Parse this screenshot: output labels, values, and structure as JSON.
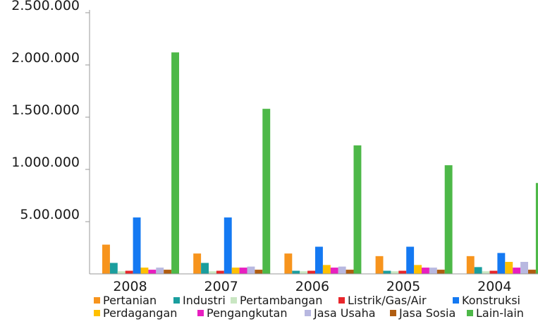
{
  "chart_data": {
    "type": "bar",
    "categories": [
      "2008",
      "2007",
      "2006",
      "2005",
      "2004"
    ],
    "ylim": [
      0,
      2500000
    ],
    "y_ticks": [
      {
        "value": 500000,
        "label": "5.00.000"
      },
      {
        "value": 1000000,
        "label": "1.000.000"
      },
      {
        "value": 1500000,
        "label": "1.500.000"
      },
      {
        "value": 2000000,
        "label": "2.000.000"
      },
      {
        "value": 2500000,
        "label": "2.500.000"
      }
    ],
    "grid": false,
    "legend_position": "bottom",
    "series": [
      {
        "name": "Pertanian",
        "color": "#f7941d",
        "values": [
          280000,
          195000,
          195000,
          170000,
          170000
        ]
      },
      {
        "name": "Industri",
        "color": "#1a9e9e",
        "values": [
          105000,
          105000,
          30000,
          30000,
          65000
        ]
      },
      {
        "name": "Pertambangan",
        "color": "#c9e6c2",
        "values": [
          25000,
          25000,
          25000,
          25000,
          25000
        ]
      },
      {
        "name": "Listrik/Gas/Air",
        "color": "#e8262b",
        "values": [
          30000,
          30000,
          30000,
          30000,
          30000
        ]
      },
      {
        "name": "Konstruksi",
        "color": "#1479f2",
        "values": [
          540000,
          540000,
          260000,
          260000,
          200000
        ]
      },
      {
        "name": "Perdagangan",
        "color": "#ffc000",
        "values": [
          60000,
          60000,
          85000,
          85000,
          115000
        ]
      },
      {
        "name": "Pengangkutan",
        "color": "#e81ec0",
        "values": [
          40000,
          60000,
          60000,
          60000,
          60000
        ]
      },
      {
        "name": "Jasa Usaha",
        "color": "#b8b8e0",
        "values": [
          60000,
          70000,
          70000,
          60000,
          115000
        ]
      },
      {
        "name": "Jasa Sosia",
        "color": "#b05d10",
        "values": [
          40000,
          40000,
          40000,
          40000,
          40000
        ]
      },
      {
        "name": "Lain-lain",
        "color": "#4db848",
        "values": [
          2120000,
          1580000,
          1230000,
          1040000,
          870000
        ]
      }
    ]
  }
}
